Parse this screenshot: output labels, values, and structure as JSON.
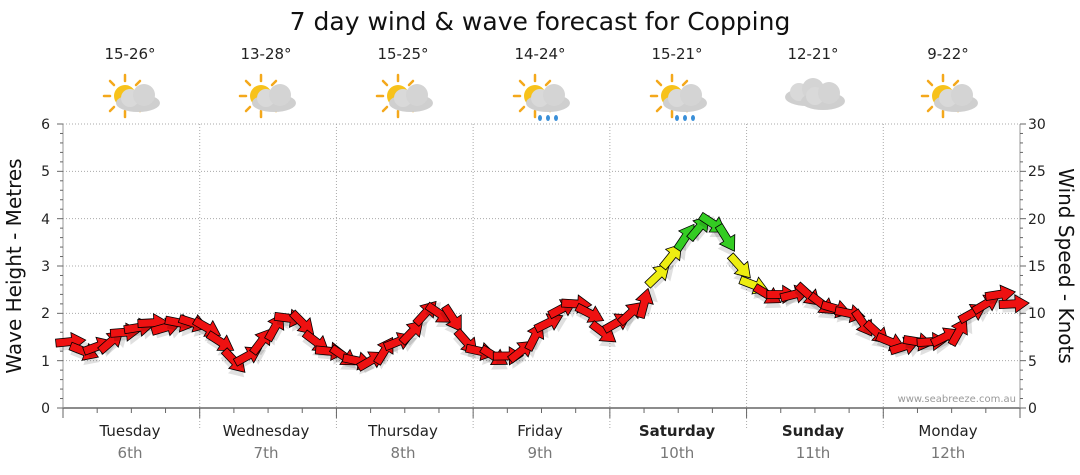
{
  "chart_data": {
    "type": "line",
    "title": "7 day wind & wave forecast for Copping",
    "ylabel_left": "Wave Height - Metres",
    "ylabel_right": "Wind Speed - Knots",
    "ylim_left": [
      0,
      6
    ],
    "ylim_right": [
      0,
      30
    ],
    "left_ticks": [
      "0",
      "1",
      "2",
      "3",
      "4",
      "5",
      "6"
    ],
    "right_ticks": [
      "0",
      "5",
      "10",
      "15",
      "20",
      "25",
      "30"
    ],
    "grid": true,
    "credit": "www.seabreeze.com.au",
    "days": [
      {
        "day": "Tuesday",
        "date": "6th",
        "range": "15-26°",
        "weather": "sun-cloud-icon",
        "bold": false
      },
      {
        "day": "Wednesday",
        "date": "7th",
        "range": "13-28°",
        "weather": "sun-cloud-icon",
        "bold": false
      },
      {
        "day": "Thursday",
        "date": "8th",
        "range": "15-25°",
        "weather": "sun-cloud-icon",
        "bold": false
      },
      {
        "day": "Friday",
        "date": "9th",
        "range": "14-24°",
        "weather": "sun-rain-icon",
        "bold": false
      },
      {
        "day": "Saturday",
        "date": "10th",
        "range": "15-21°",
        "weather": "sun-rain-icon",
        "bold": true
      },
      {
        "day": "Sunday",
        "date": "11th",
        "range": "12-21°",
        "weather": "cloud-icon",
        "bold": true
      },
      {
        "day": "Monday",
        "date": "12th",
        "range": "9-22°",
        "weather": "sun-cloud-icon",
        "bold": false
      }
    ],
    "wind_series": {
      "name": "Wind speed (knots)",
      "x_days": [
        0.0,
        0.1,
        0.2,
        0.3,
        0.4,
        0.5,
        0.6,
        0.7,
        0.8,
        0.9,
        1.0,
        1.1,
        1.2,
        1.3,
        1.4,
        1.5,
        1.6,
        1.7,
        1.8,
        1.9,
        2.0,
        2.1,
        2.2,
        2.3,
        2.4,
        2.5,
        2.6,
        2.7,
        2.8,
        2.9,
        3.0,
        3.1,
        3.2,
        3.3,
        3.4,
        3.5,
        3.6,
        3.7,
        3.8,
        3.9,
        4.0,
        4.1,
        4.2,
        4.3,
        4.4,
        4.5,
        4.6,
        4.7,
        4.8,
        4.9,
        5.0,
        5.1,
        5.2,
        5.3,
        5.4,
        5.5,
        5.6,
        5.7,
        5.8,
        5.9,
        6.0,
        6.1,
        6.2,
        6.3,
        6.4,
        6.5,
        6.6,
        6.7,
        6.8,
        6.9
      ],
      "knots": [
        7,
        6,
        6.5,
        7,
        8,
        8.5,
        9,
        8.5,
        9,
        9,
        8.5,
        7,
        5,
        5.5,
        7,
        8.5,
        9.5,
        9,
        7,
        6,
        5.5,
        5,
        5,
        6,
        7,
        8,
        10,
        10,
        9.5,
        7,
        6,
        5.5,
        5.5,
        6,
        7.5,
        9,
        10.5,
        11,
        10,
        8,
        9,
        10,
        11,
        14,
        16,
        18,
        19,
        19.5,
        18,
        15,
        13,
        12,
        12,
        12,
        12,
        11,
        10.5,
        10,
        9,
        8,
        7,
        6.5,
        7,
        7,
        7.5,
        8,
        10,
        11,
        12,
        11
      ],
      "colors_legend": {
        "red": "#ee1111",
        "yellow": "#eeee11",
        "green": "#33cc22"
      }
    }
  }
}
